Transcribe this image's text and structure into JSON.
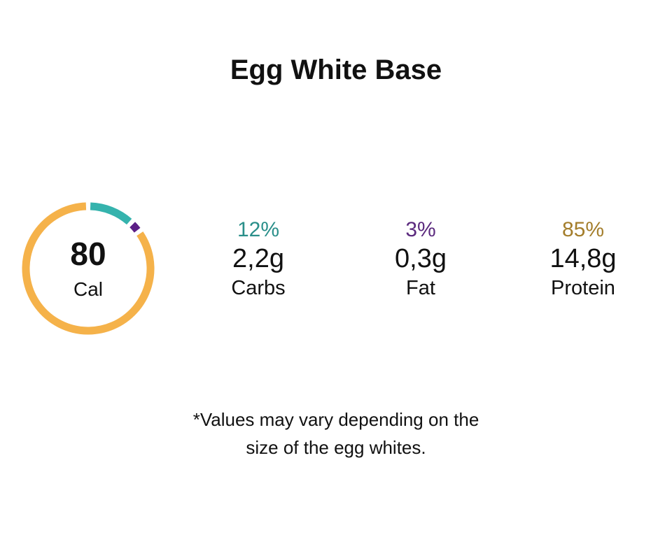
{
  "title": "Egg White Base",
  "calories": {
    "value": "80",
    "unit": "Cal"
  },
  "chart_data": {
    "type": "pie",
    "categories": [
      "Carbs",
      "Fat",
      "Protein"
    ],
    "values": [
      12,
      3,
      85
    ],
    "colors": [
      "#35b3ad",
      "#5c1f86",
      "#f5b24a"
    ]
  },
  "macros": [
    {
      "percent": "12%",
      "grams": "2,2g",
      "label": "Carbs",
      "color": "#2a8f8a"
    },
    {
      "percent": "3%",
      "grams": "0,3g",
      "label": "Fat",
      "color": "#5b2a7e"
    },
    {
      "percent": "85%",
      "grams": "14,8g",
      "label": "Protein",
      "color": "#a47e2c"
    }
  ],
  "note": {
    "line1": "*Values may vary depending on the",
    "line2": "size of the egg whites."
  }
}
